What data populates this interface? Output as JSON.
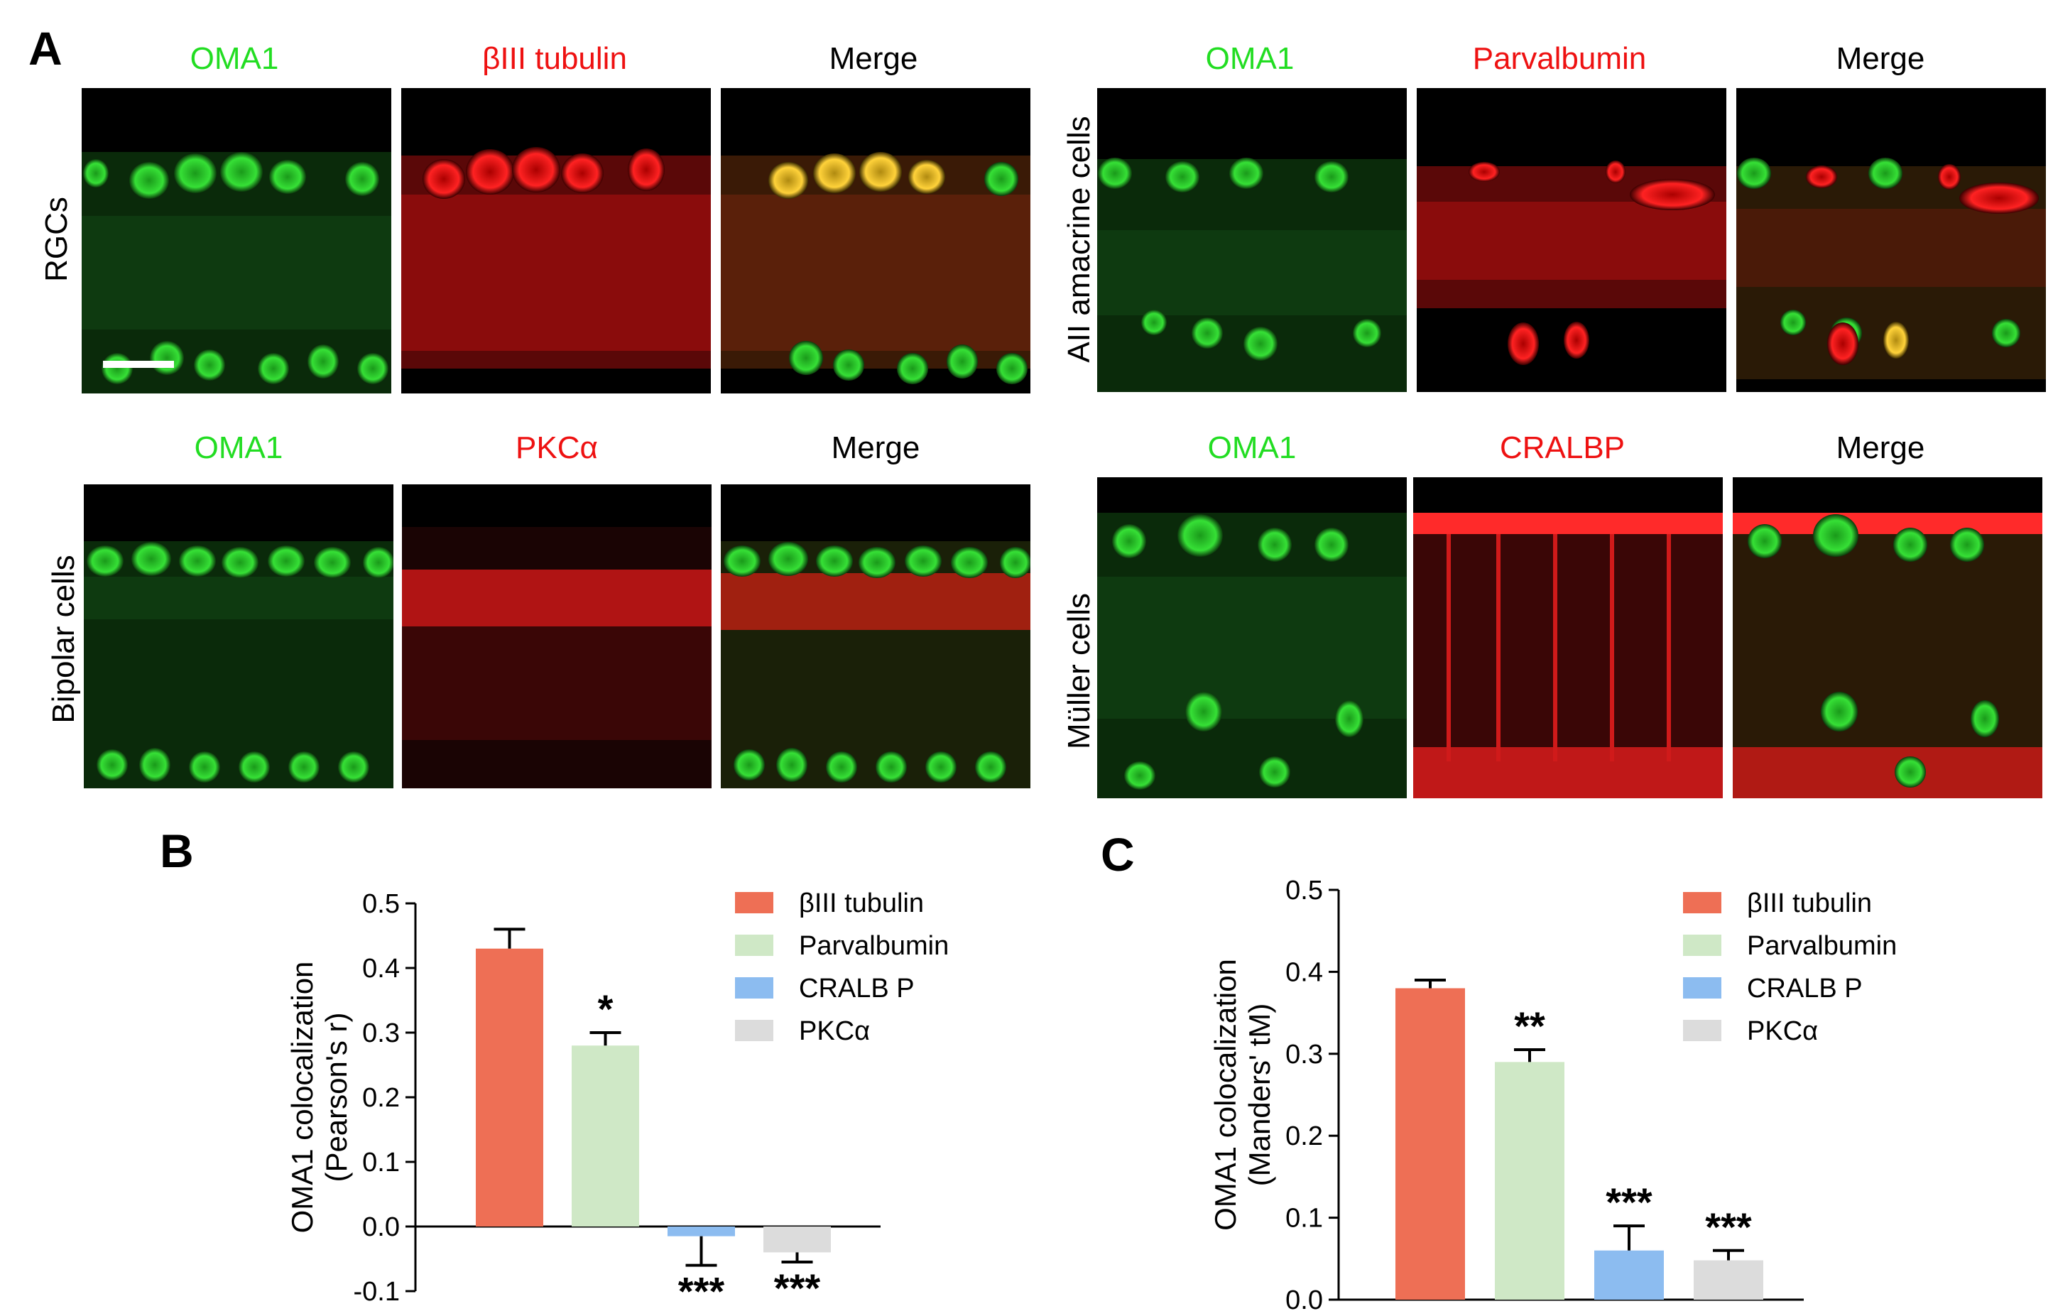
{
  "panel_a": {
    "letter": "A",
    "groups": [
      {
        "id": "rgc",
        "row_label": "RGCs",
        "labels": [
          "OMA1",
          "βIII tubulin",
          "Merge"
        ]
      },
      {
        "id": "amacrine",
        "row_label": "AII amacrine cells",
        "labels": [
          "OMA1",
          "Parvalbumin",
          "Merge"
        ]
      },
      {
        "id": "bipolar",
        "row_label": "Bipolar cells",
        "labels": [
          "OMA1",
          "PKCα",
          "Merge"
        ]
      },
      {
        "id": "muller",
        "row_label": "Müller cells",
        "labels": [
          "OMA1",
          "CRALBP",
          "Merge"
        ]
      }
    ],
    "colors": {
      "green": "#22dd22",
      "red": "#ee1111",
      "black": "#000000"
    }
  },
  "chart_data": [
    {
      "letter": "B",
      "type": "bar",
      "categories": [
        "βIII tubulin",
        "Parvalbumin",
        "CRALBP",
        "PKCα"
      ],
      "values": [
        0.43,
        0.28,
        -0.015,
        -0.04
      ],
      "errors": [
        0.03,
        0.02,
        0.045,
        0.015
      ],
      "significance": [
        "",
        "*",
        "***",
        "***"
      ],
      "colors": [
        "#ee6f55",
        "#cfe8c6",
        "#8cbcf0",
        "#dcdcdc"
      ],
      "ylabel_line1": "OMA1 colocalization",
      "ylabel_line2": "(Pearson's r)",
      "ylim": [
        -0.1,
        0.5
      ],
      "yticks": [
        "0.5",
        "0.4",
        "0.3",
        "0.2",
        "0.1",
        "0.0",
        "-0.1"
      ],
      "legend": [
        "βIII tubulin",
        "Parvalbumin",
        "CRALB P",
        "PKCα"
      ],
      "legend_position": "top-right"
    },
    {
      "letter": "C",
      "type": "bar",
      "categories": [
        "βIII tubulin",
        "Parvalbumin",
        "CRALBP",
        "PKCα"
      ],
      "values": [
        0.38,
        0.29,
        0.06,
        0.048
      ],
      "errors": [
        0.01,
        0.015,
        0.03,
        0.012
      ],
      "significance": [
        "",
        "**",
        "***",
        "***"
      ],
      "colors": [
        "#ee6f55",
        "#cfe8c6",
        "#8cbcf0",
        "#dcdcdc"
      ],
      "ylabel_line1": "OMA1 colocalization",
      "ylabel_line2": "(Manders' tM)",
      "ylim": [
        0.0,
        0.5
      ],
      "yticks": [
        "0.5",
        "0.4",
        "0.3",
        "0.2",
        "0.1",
        "0.0"
      ],
      "legend": [
        "βIII tubulin",
        "Parvalbumin",
        "CRALB P",
        "PKCα"
      ],
      "legend_position": "top-right"
    }
  ]
}
